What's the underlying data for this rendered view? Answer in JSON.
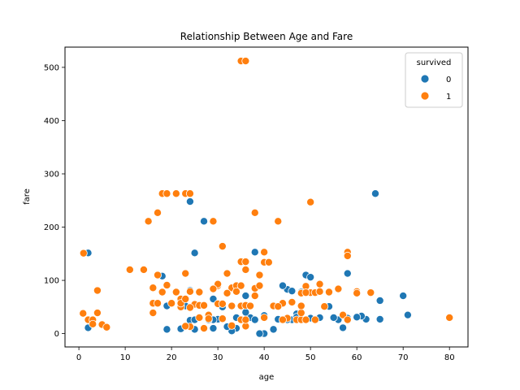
{
  "chart_data": {
    "type": "scatter",
    "title": "Relationship Between Age and Fare",
    "xlabel": "age",
    "ylabel": "fare",
    "xlim": [
      -3,
      84
    ],
    "ylim": [
      -25,
      538
    ],
    "xticks": [
      0,
      10,
      20,
      30,
      40,
      50,
      60,
      70,
      80
    ],
    "yticks": [
      0,
      100,
      200,
      300,
      400,
      500
    ],
    "grid": false,
    "legend": {
      "title": "survived",
      "placement": "top-right"
    },
    "colors": {
      "0": "#1f77b4",
      "1": "#ff7f0e"
    },
    "series": [
      {
        "name": "0",
        "points": [
          [
            2,
            151.5
          ],
          [
            2,
            11
          ],
          [
            18,
            108
          ],
          [
            19,
            263
          ],
          [
            24,
            248
          ],
          [
            25,
            151.5
          ],
          [
            27,
            211
          ],
          [
            38,
            153
          ],
          [
            45,
            83
          ],
          [
            48,
            52
          ],
          [
            49,
            110
          ],
          [
            50,
            106
          ],
          [
            54,
            51
          ],
          [
            58,
            113
          ],
          [
            64,
            263
          ],
          [
            70,
            71
          ],
          [
            71,
            35
          ],
          [
            65,
            62
          ],
          [
            62,
            27
          ],
          [
            65,
            27
          ],
          [
            61,
            33
          ],
          [
            60,
            31
          ],
          [
            58,
            29
          ],
          [
            56,
            26
          ],
          [
            57,
            11
          ],
          [
            55,
            30
          ],
          [
            50,
            29
          ],
          [
            46,
            26
          ],
          [
            47,
            37
          ],
          [
            47,
            31
          ],
          [
            48,
            26
          ],
          [
            44,
            90
          ],
          [
            45,
            26
          ],
          [
            46,
            80
          ],
          [
            42,
            8
          ],
          [
            40,
            0
          ],
          [
            39,
            0
          ],
          [
            37,
            30
          ],
          [
            36,
            40
          ],
          [
            36,
            26
          ],
          [
            34,
            10
          ],
          [
            33,
            5
          ],
          [
            31,
            50
          ],
          [
            30,
            27
          ],
          [
            29,
            26
          ],
          [
            29,
            65
          ],
          [
            28,
            26
          ],
          [
            27,
            10
          ],
          [
            25,
            8
          ],
          [
            24,
            81
          ],
          [
            24,
            25
          ],
          [
            23,
            52
          ],
          [
            22,
            52
          ],
          [
            19,
            8
          ],
          [
            19,
            52
          ],
          [
            32,
            13
          ],
          [
            36,
            71
          ],
          [
            38,
            26
          ],
          [
            43,
            27
          ],
          [
            29,
            10
          ],
          [
            25,
            26
          ],
          [
            52,
            30
          ],
          [
            48,
            78
          ],
          [
            40,
            34
          ],
          [
            34,
            30
          ],
          [
            22,
            9
          ]
        ]
      },
      {
        "name": "1",
        "points": [
          [
            35,
            512
          ],
          [
            36,
            512
          ],
          [
            18,
            263
          ],
          [
            21,
            263
          ],
          [
            23,
            263
          ],
          [
            24,
            263
          ],
          [
            19,
            263
          ],
          [
            17,
            227
          ],
          [
            38,
            227
          ],
          [
            15,
            211
          ],
          [
            29,
            211
          ],
          [
            43,
            211
          ],
          [
            50,
            247
          ],
          [
            31,
            164
          ],
          [
            40,
            153
          ],
          [
            58,
            153
          ],
          [
            58,
            146
          ],
          [
            1,
            151
          ],
          [
            11,
            120
          ],
          [
            14,
            120
          ],
          [
            36,
            120
          ],
          [
            33,
            86
          ],
          [
            35,
            135
          ],
          [
            36,
            135
          ],
          [
            40,
            134
          ],
          [
            41,
            134
          ],
          [
            34,
            90
          ],
          [
            35,
            90
          ],
          [
            30,
            90
          ],
          [
            30,
            93
          ],
          [
            39,
            110
          ],
          [
            32,
            113
          ],
          [
            17,
            110
          ],
          [
            17,
            57
          ],
          [
            16,
            86
          ],
          [
            19,
            91
          ],
          [
            21,
            78
          ],
          [
            22,
            65
          ],
          [
            22,
            50
          ],
          [
            24,
            79
          ],
          [
            23,
            113
          ],
          [
            26,
            78
          ],
          [
            29,
            84
          ],
          [
            4,
            39
          ],
          [
            4,
            81
          ],
          [
            5,
            17
          ],
          [
            6,
            12
          ],
          [
            2,
            26
          ],
          [
            3,
            26
          ],
          [
            0.9,
            38
          ],
          [
            3,
            18
          ],
          [
            16,
            39
          ],
          [
            16,
            57
          ],
          [
            17,
            57
          ],
          [
            18,
            78
          ],
          [
            20,
            57
          ],
          [
            22,
            57
          ],
          [
            23,
            65
          ],
          [
            25,
            55
          ],
          [
            26,
            30
          ],
          [
            27,
            10
          ],
          [
            28,
            35
          ],
          [
            30,
            56
          ],
          [
            31,
            56
          ],
          [
            33,
            52
          ],
          [
            35,
            52
          ],
          [
            36,
            53
          ],
          [
            37,
            52
          ],
          [
            38,
            85
          ],
          [
            39,
            90
          ],
          [
            40,
            30
          ],
          [
            42,
            52
          ],
          [
            44,
            57
          ],
          [
            45,
            29
          ],
          [
            47,
            26
          ],
          [
            48,
            26
          ],
          [
            48,
            39
          ],
          [
            48,
            52
          ],
          [
            48,
            76
          ],
          [
            49,
            89
          ],
          [
            50,
            77
          ],
          [
            51,
            77
          ],
          [
            52,
            93
          ],
          [
            52,
            79
          ],
          [
            53,
            51
          ],
          [
            54,
            78
          ],
          [
            56,
            84
          ],
          [
            57,
            35
          ],
          [
            58,
            26
          ],
          [
            60,
            79
          ],
          [
            60,
            76
          ],
          [
            63,
            77
          ],
          [
            80,
            30
          ],
          [
            49,
            26
          ],
          [
            51,
            26
          ],
          [
            24,
            13
          ],
          [
            23,
            14
          ],
          [
            33,
            15
          ],
          [
            35,
            26
          ],
          [
            36,
            14
          ],
          [
            49,
            77
          ],
          [
            24,
            49
          ],
          [
            26,
            53
          ],
          [
            31,
            28
          ],
          [
            38,
            71
          ],
          [
            46,
            59
          ],
          [
            44,
            26
          ],
          [
            32,
            76
          ],
          [
            34,
            79
          ],
          [
            36,
            26
          ],
          [
            28,
            28
          ],
          [
            27,
            53
          ],
          [
            43,
            51
          ]
        ]
      }
    ]
  }
}
